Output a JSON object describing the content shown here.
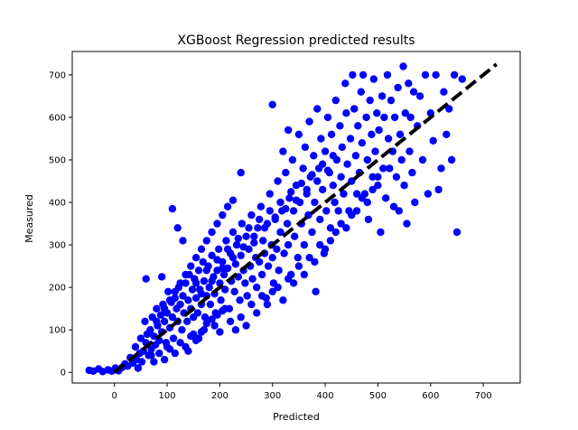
{
  "chart_data": {
    "type": "scatter",
    "title": "XGBoost Regression predicted results",
    "xlabel": "Predicted",
    "ylabel": "Measured",
    "xlim": [
      -80,
      770
    ],
    "ylim": [
      -25,
      755
    ],
    "xticks": [
      0,
      100,
      200,
      300,
      400,
      500,
      600,
      700
    ],
    "yticks": [
      0,
      100,
      200,
      300,
      400,
      500,
      600,
      700
    ],
    "marker_color": "#0000ff",
    "reference_line": {
      "x": [
        0,
        725
      ],
      "y": [
        0,
        725
      ],
      "color": "#000000",
      "style": "dashed"
    },
    "grid": false,
    "points": [
      [
        -48,
        5
      ],
      [
        -40,
        3
      ],
      [
        -30,
        8
      ],
      [
        -22,
        2
      ],
      [
        -12,
        6
      ],
      [
        -5,
        3
      ],
      [
        2,
        10
      ],
      [
        8,
        4
      ],
      [
        15,
        12
      ],
      [
        20,
        20
      ],
      [
        25,
        15
      ],
      [
        30,
        35
      ],
      [
        35,
        22
      ],
      [
        40,
        60
      ],
      [
        42,
        30
      ],
      [
        45,
        10
      ],
      [
        48,
        45
      ],
      [
        50,
        80
      ],
      [
        52,
        25
      ],
      [
        55,
        50
      ],
      [
        58,
        120
      ],
      [
        60,
        70
      ],
      [
        62,
        90
      ],
      [
        65,
        40
      ],
      [
        68,
        100
      ],
      [
        70,
        55
      ],
      [
        72,
        130
      ],
      [
        75,
        85
      ],
      [
        78,
        65
      ],
      [
        80,
        150
      ],
      [
        82,
        110
      ],
      [
        85,
        75
      ],
      [
        88,
        135
      ],
      [
        90,
        95
      ],
      [
        92,
        160
      ],
      [
        95,
        120
      ],
      [
        98,
        70
      ],
      [
        100,
        140
      ],
      [
        102,
        190
      ],
      [
        105,
        105
      ],
      [
        108,
        165
      ],
      [
        110,
        130
      ],
      [
        112,
        80
      ],
      [
        115,
        175
      ],
      [
        118,
        150
      ],
      [
        120,
        120
      ],
      [
        122,
        200
      ],
      [
        125,
        160
      ],
      [
        128,
        100
      ],
      [
        130,
        180
      ],
      [
        132,
        140
      ],
      [
        135,
        210
      ],
      [
        138,
        120
      ],
      [
        140,
        170
      ],
      [
        142,
        230
      ],
      [
        145,
        150
      ],
      [
        148,
        195
      ],
      [
        150,
        90
      ],
      [
        152,
        220
      ],
      [
        155,
        175
      ],
      [
        158,
        140
      ],
      [
        160,
        240
      ],
      [
        162,
        195
      ],
      [
        165,
        160
      ],
      [
        168,
        260
      ],
      [
        170,
        215
      ],
      [
        172,
        130
      ],
      [
        175,
        180
      ],
      [
        178,
        250
      ],
      [
        180,
        200
      ],
      [
        182,
        160
      ],
      [
        185,
        275
      ],
      [
        188,
        225
      ],
      [
        190,
        185
      ],
      [
        192,
        140
      ],
      [
        195,
        240
      ],
      [
        198,
        290
      ],
      [
        200,
        210
      ],
      [
        202,
        170
      ],
      [
        205,
        260
      ],
      [
        208,
        230
      ],
      [
        210,
        195
      ],
      [
        212,
        310
      ],
      [
        215,
        245
      ],
      [
        218,
        150
      ],
      [
        220,
        280
      ],
      [
        222,
        215
      ],
      [
        225,
        330
      ],
      [
        228,
        190
      ],
      [
        230,
        255
      ],
      [
        232,
        300
      ],
      [
        235,
        225
      ],
      [
        238,
        170
      ],
      [
        240,
        275
      ],
      [
        242,
        350
      ],
      [
        245,
        240
      ],
      [
        248,
        210
      ],
      [
        250,
        320
      ],
      [
        252,
        180
      ],
      [
        255,
        290
      ],
      [
        258,
        250
      ],
      [
        260,
        370
      ],
      [
        262,
        220
      ],
      [
        265,
        305
      ],
      [
        268,
        270
      ],
      [
        270,
        200
      ],
      [
        272,
        340
      ],
      [
        275,
        260
      ],
      [
        278,
        390
      ],
      [
        280,
        230
      ],
      [
        282,
        310
      ],
      [
        285,
        280
      ],
      [
        288,
        175
      ],
      [
        290,
        350
      ],
      [
        292,
        250
      ],
      [
        295,
        420
      ],
      [
        298,
        300
      ],
      [
        300,
        270
      ],
      [
        302,
        210
      ],
      [
        305,
        360
      ],
      [
        308,
        290
      ],
      [
        310,
        450
      ],
      [
        312,
        240
      ],
      [
        315,
        330
      ],
      [
        318,
        380
      ],
      [
        320,
        520
      ],
      [
        322,
        280
      ],
      [
        325,
        470
      ],
      [
        328,
        350
      ],
      [
        330,
        300
      ],
      [
        332,
        410
      ],
      [
        335,
        230
      ],
      [
        338,
        500
      ],
      [
        340,
        380
      ],
      [
        342,
        320
      ],
      [
        345,
        440
      ],
      [
        348,
        270
      ],
      [
        350,
        560
      ],
      [
        352,
        400
      ],
      [
        355,
        350
      ],
      [
        358,
        480
      ],
      [
        360,
        300
      ],
      [
        362,
        530
      ],
      [
        365,
        420
      ],
      [
        368,
        370
      ],
      [
        370,
        590
      ],
      [
        372,
        460
      ],
      [
        375,
        330
      ],
      [
        378,
        510
      ],
      [
        380,
        400
      ],
      [
        382,
        190
      ],
      [
        385,
        620
      ],
      [
        388,
        480
      ],
      [
        390,
        360
      ],
      [
        392,
        550
      ],
      [
        395,
        430
      ],
      [
        398,
        280
      ],
      [
        400,
        520
      ],
      [
        402,
        380
      ],
      [
        405,
        600
      ],
      [
        408,
        470
      ],
      [
        410,
        340
      ],
      [
        412,
        560
      ],
      [
        415,
        440
      ],
      [
        418,
        400
      ],
      [
        420,
        640
      ],
      [
        422,
        500
      ],
      [
        425,
        380
      ],
      [
        428,
        580
      ],
      [
        430,
        460
      ],
      [
        432,
        530
      ],
      [
        435,
        420
      ],
      [
        438,
        680
      ],
      [
        440,
        610
      ],
      [
        442,
        490
      ],
      [
        445,
        380
      ],
      [
        448,
        550
      ],
      [
        450,
        450
      ],
      [
        452,
        700
      ],
      [
        455,
        620
      ],
      [
        458,
        510
      ],
      [
        460,
        420
      ],
      [
        462,
        580
      ],
      [
        465,
        470
      ],
      [
        468,
        660
      ],
      [
        470,
        540
      ],
      [
        472,
        700
      ],
      [
        475,
        420
      ],
      [
        478,
        600
      ],
      [
        480,
        500
      ],
      [
        482,
        360
      ],
      [
        485,
        640
      ],
      [
        488,
        560
      ],
      [
        490,
        460
      ],
      [
        492,
        690
      ],
      [
        495,
        520
      ],
      [
        498,
        610
      ],
      [
        500,
        440
      ],
      [
        502,
        570
      ],
      [
        505,
        330
      ],
      [
        508,
        650
      ],
      [
        510,
        480
      ],
      [
        512,
        600
      ],
      [
        515,
        410
      ],
      [
        518,
        700
      ],
      [
        520,
        550
      ],
      [
        522,
        480
      ],
      [
        525,
        640
      ],
      [
        528,
        520
      ],
      [
        530,
        390
      ],
      [
        532,
        600
      ],
      [
        535,
        460
      ],
      [
        538,
        670
      ],
      [
        540,
        380
      ],
      [
        542,
        560
      ],
      [
        545,
        500
      ],
      [
        548,
        720
      ],
      [
        550,
        440
      ],
      [
        552,
        610
      ],
      [
        555,
        350
      ],
      [
        558,
        680
      ],
      [
        560,
        520
      ],
      [
        562,
        600
      ],
      [
        565,
        470
      ],
      [
        568,
        660
      ],
      [
        570,
        400
      ],
      [
        575,
        580
      ],
      [
        580,
        650
      ],
      [
        585,
        500
      ],
      [
        590,
        700
      ],
      [
        595,
        420
      ],
      [
        600,
        610
      ],
      [
        605,
        545
      ],
      [
        610,
        700
      ],
      [
        615,
        430
      ],
      [
        620,
        480
      ],
      [
        625,
        660
      ],
      [
        630,
        560
      ],
      [
        635,
        620
      ],
      [
        640,
        500
      ],
      [
        645,
        700
      ],
      [
        650,
        330
      ],
      [
        660,
        690
      ],
      [
        300,
        630
      ],
      [
        330,
        570
      ],
      [
        110,
        385
      ],
      [
        240,
        470
      ],
      [
        60,
        220
      ],
      [
        90,
        225
      ],
      [
        80,
        120
      ],
      [
        120,
        340
      ],
      [
        130,
        310
      ],
      [
        100,
        60
      ],
      [
        140,
        50
      ],
      [
        160,
        80
      ],
      [
        170,
        100
      ],
      [
        190,
        110
      ],
      [
        200,
        95
      ],
      [
        210,
        150
      ],
      [
        220,
        120
      ],
      [
        230,
        100
      ],
      [
        240,
        130
      ],
      [
        250,
        110
      ],
      [
        260,
        160
      ],
      [
        270,
        140
      ],
      [
        280,
        180
      ],
      [
        290,
        160
      ],
      [
        300,
        190
      ],
      [
        310,
        200
      ],
      [
        320,
        170
      ],
      [
        330,
        220
      ],
      [
        340,
        210
      ],
      [
        350,
        250
      ],
      [
        360,
        230
      ],
      [
        370,
        270
      ],
      [
        380,
        260
      ],
      [
        390,
        300
      ],
      [
        400,
        290
      ],
      [
        410,
        310
      ],
      [
        420,
        330
      ],
      [
        430,
        350
      ],
      [
        440,
        340
      ],
      [
        450,
        370
      ],
      [
        460,
        380
      ],
      [
        470,
        410
      ],
      [
        480,
        400
      ],
      [
        490,
        430
      ],
      [
        500,
        460
      ],
      [
        150,
        130
      ],
      [
        155,
        210
      ],
      [
        165,
        185
      ],
      [
        175,
        240
      ],
      [
        185,
        215
      ],
      [
        195,
        265
      ],
      [
        205,
        245
      ],
      [
        215,
        290
      ],
      [
        225,
        270
      ],
      [
        235,
        315
      ],
      [
        245,
        295
      ],
      [
        255,
        340
      ],
      [
        265,
        320
      ],
      [
        275,
        360
      ],
      [
        285,
        340
      ],
      [
        295,
        380
      ],
      [
        305,
        365
      ],
      [
        315,
        400
      ],
      [
        325,
        385
      ],
      [
        335,
        425
      ],
      [
        345,
        405
      ],
      [
        355,
        445
      ],
      [
        365,
        430
      ],
      [
        375,
        465
      ],
      [
        385,
        450
      ],
      [
        395,
        490
      ],
      [
        405,
        475
      ],
      [
        415,
        510
      ],
      [
        95,
        150
      ],
      [
        105,
        170
      ],
      [
        115,
        190
      ],
      [
        125,
        210
      ],
      [
        135,
        230
      ],
      [
        145,
        250
      ],
      [
        155,
        270
      ],
      [
        165,
        290
      ],
      [
        175,
        310
      ],
      [
        185,
        330
      ],
      [
        195,
        350
      ],
      [
        205,
        370
      ],
      [
        215,
        390
      ],
      [
        225,
        405
      ],
      [
        70,
        40
      ],
      [
        75,
        25
      ],
      [
        85,
        45
      ],
      [
        95,
        30
      ],
      [
        105,
        55
      ],
      [
        115,
        45
      ],
      [
        125,
        70
      ],
      [
        135,
        60
      ],
      [
        145,
        85
      ],
      [
        155,
        75
      ],
      [
        165,
        95
      ],
      [
        175,
        115
      ],
      [
        185,
        125
      ],
      [
        195,
        135
      ],
      [
        205,
        145
      ]
    ]
  }
}
